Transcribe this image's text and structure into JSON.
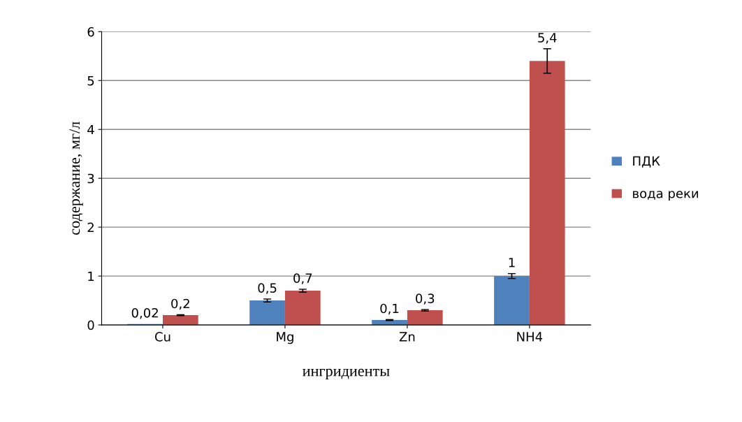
{
  "chart_data": {
    "type": "bar",
    "xlabel": "ингридиенты",
    "ylabel": "содержание, мг/л",
    "categories": [
      "Cu",
      "Mg",
      "Zn",
      "NH4"
    ],
    "series": [
      {
        "name": "ПДК",
        "color": "#4f81bd",
        "values": [
          0.02,
          0.5,
          0.1,
          1
        ],
        "errors": [
          null,
          0.03,
          0.01,
          0.05
        ],
        "value_labels": [
          "0,02",
          "0,5",
          "0,1",
          "1"
        ]
      },
      {
        "name": "вода реки",
        "color": "#c0504d",
        "values": [
          0.2,
          0.7,
          0.3,
          5.4
        ],
        "errors": [
          0.01,
          0.03,
          0.015,
          0.25
        ],
        "value_labels": [
          "0,2",
          "0,7",
          "0,3",
          "5,4"
        ]
      }
    ],
    "ylim": [
      0,
      6
    ],
    "yticks": [
      0,
      1,
      2,
      3,
      4,
      5,
      6
    ],
    "grid": "y",
    "legend": "right"
  }
}
